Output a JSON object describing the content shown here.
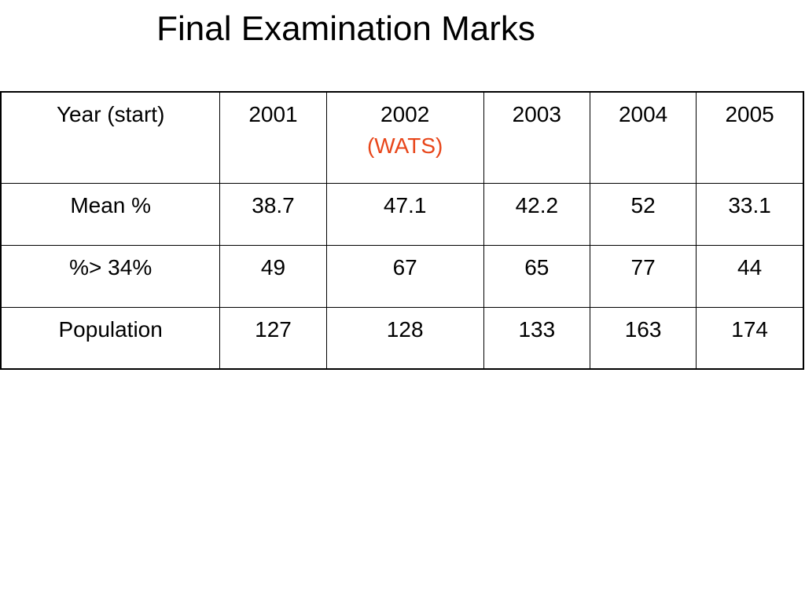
{
  "title": "Final Examination Marks",
  "table": {
    "header": [
      {
        "text": "Year (start)"
      },
      {
        "text": "2001"
      },
      {
        "text": "2002",
        "note": "(WATS)"
      },
      {
        "text": "2003"
      },
      {
        "text": "2004"
      },
      {
        "text": "2005"
      }
    ],
    "rows": [
      [
        "Mean %",
        "38.7",
        "47.1",
        "42.2",
        "52",
        "33.1"
      ],
      [
        "%> 34%",
        "49",
        "67",
        "65",
        "77",
        "44"
      ],
      [
        "Population",
        "127",
        "128",
        "133",
        "163",
        "174"
      ]
    ]
  }
}
